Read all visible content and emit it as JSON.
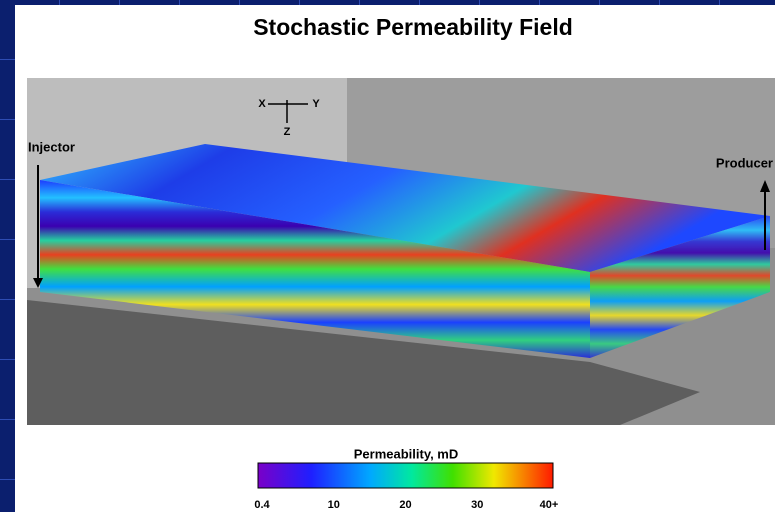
{
  "title": "Stochastic Permeability Field",
  "axes_glyph": {
    "x": "X",
    "y": "Y",
    "z": "Z"
  },
  "wells": {
    "injector": "Injector",
    "producer": "Producer"
  },
  "colorbar": {
    "title": "Permeability, mD",
    "ticks": [
      "0.4",
      "10",
      "20",
      "30",
      "40+"
    ]
  }
}
